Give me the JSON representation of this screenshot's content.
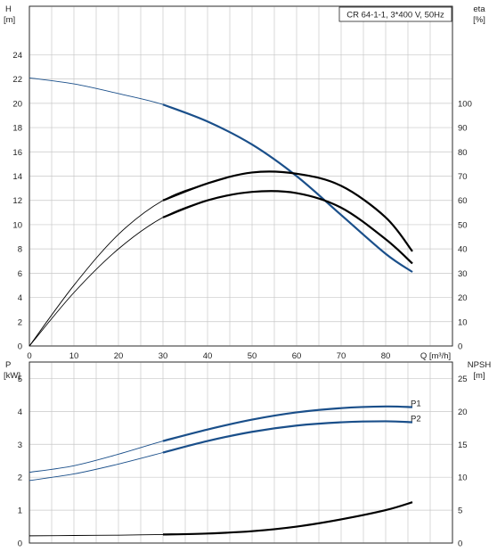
{
  "chart_data": [
    {
      "type": "line",
      "title": "CR 64-1-1, 3*400 V, 50Hz",
      "x_axis": {
        "label": "Q [m³/h]",
        "ticks": [
          0,
          10,
          20,
          30,
          40,
          50,
          60,
          70,
          80
        ],
        "xlim": [
          0,
          95
        ]
      },
      "y_axis_left": {
        "label_line1": "H",
        "label_line2": "[m]",
        "ticks": [
          0,
          2,
          4,
          6,
          8,
          10,
          12,
          14,
          16,
          18,
          20,
          22,
          24
        ],
        "ylim": [
          0,
          28
        ]
      },
      "y_axis_right": {
        "label_line1": "eta",
        "label_line2": "[%]",
        "ticks": [
          0,
          10,
          20,
          30,
          40,
          50,
          60,
          70,
          80,
          90,
          100
        ],
        "ylim": [
          0,
          140
        ]
      },
      "grid": true,
      "series": [
        {
          "axis": "left",
          "color": "#1a4f8a",
          "x": [
            0,
            10,
            20,
            30,
            40,
            50,
            60,
            70,
            80,
            86
          ],
          "y": [
            22.1,
            21.6,
            20.8,
            19.9,
            18.5,
            16.6,
            14.0,
            10.8,
            7.6,
            6.1
          ]
        },
        {
          "axis": "right",
          "color": "#000000",
          "x": [
            0,
            10,
            20,
            30,
            40,
            50,
            60,
            70,
            80,
            86
          ],
          "y": [
            0,
            25,
            46,
            60,
            67,
            71.5,
            71,
            66,
            53,
            39
          ]
        },
        {
          "axis": "right",
          "color": "#000000",
          "x": [
            0,
            10,
            20,
            30,
            40,
            50,
            60,
            70,
            80,
            86
          ],
          "y": [
            0,
            22,
            40,
            53,
            60,
            63.5,
            63,
            57,
            44,
            34
          ]
        }
      ]
    },
    {
      "type": "line",
      "x_axis": {
        "ticks": [
          0,
          10,
          20,
          30,
          40,
          50,
          60,
          70,
          80
        ],
        "xlim": [
          0,
          95
        ]
      },
      "y_axis_left": {
        "label_line1": "P",
        "label_line2": "[kW]",
        "ticks": [
          0,
          1,
          2,
          3,
          4,
          5
        ],
        "ylim": [
          0,
          5.5
        ]
      },
      "y_axis_right": {
        "label_line1": "NPSH",
        "label_line2": "[m]",
        "ticks": [
          0,
          5,
          10,
          15,
          20,
          25
        ],
        "ylim": [
          0,
          27.5
        ]
      },
      "grid": true,
      "series": [
        {
          "name": "P1",
          "axis": "left",
          "color": "#1a4f8a",
          "x": [
            0,
            10,
            20,
            30,
            40,
            50,
            60,
            70,
            80,
            86
          ],
          "y": [
            2.15,
            2.35,
            2.7,
            3.1,
            3.45,
            3.75,
            3.97,
            4.1,
            4.15,
            4.13
          ]
        },
        {
          "name": "P2",
          "axis": "left",
          "color": "#1a4f8a",
          "x": [
            0,
            10,
            20,
            30,
            40,
            50,
            60,
            70,
            80,
            86
          ],
          "y": [
            1.9,
            2.1,
            2.4,
            2.75,
            3.1,
            3.38,
            3.57,
            3.67,
            3.7,
            3.67
          ]
        },
        {
          "axis": "right",
          "color": "#000000",
          "x": [
            0,
            10,
            20,
            30,
            40,
            50,
            60,
            70,
            80,
            86
          ],
          "y": [
            1.1,
            1.15,
            1.2,
            1.3,
            1.45,
            1.8,
            2.5,
            3.6,
            5.0,
            6.2
          ]
        }
      ]
    }
  ]
}
